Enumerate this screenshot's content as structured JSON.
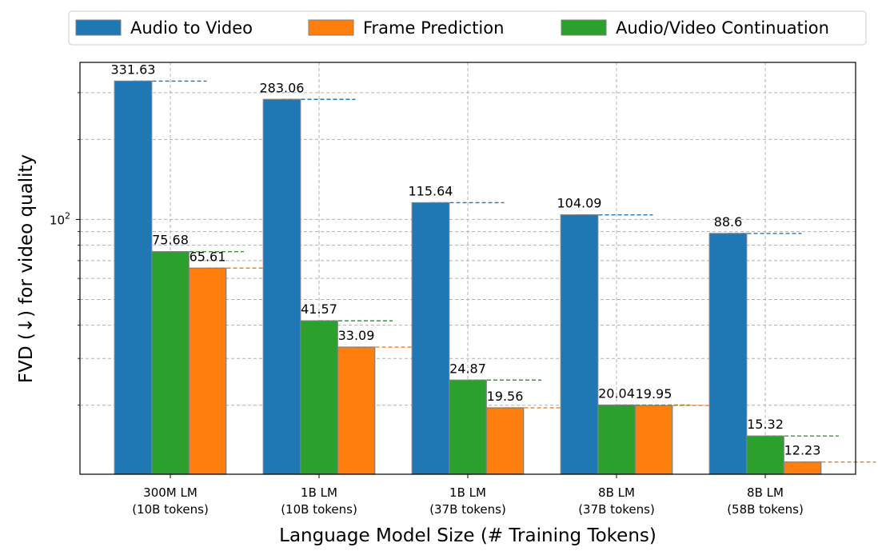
{
  "chart_data": {
    "type": "bar",
    "scale": "log",
    "xlabel": "Language Model Size (# Training Tokens)",
    "ylabel": "FVD (↓) for video quality",
    "ylim": [
      11,
      390
    ],
    "grid": true,
    "legend_position": "top",
    "y_tick_label": "10",
    "y_tick_exponent": "2",
    "categories": [
      [
        "300M LM",
        "(10B tokens)"
      ],
      [
        "1B LM",
        "(10B tokens)"
      ],
      [
        "1B LM",
        "(37B tokens)"
      ],
      [
        "8B LM",
        "(37B tokens)"
      ],
      [
        "8B LM",
        "(58B tokens)"
      ]
    ],
    "series": [
      {
        "name": "Audio to Video",
        "color": "#1f77b4",
        "values": [
          331.63,
          283.06,
          115.64,
          104.09,
          88.6
        ]
      },
      {
        "name": "Audio/Video Continuation",
        "color": "#2ca02c",
        "values": [
          75.68,
          41.57,
          24.87,
          20.04,
          15.32
        ]
      },
      {
        "name": "Frame Prediction",
        "color": "#ff7f0e",
        "values": [
          65.61,
          33.09,
          19.56,
          19.95,
          12.23
        ]
      }
    ],
    "legend_order": [
      "Audio to Video",
      "Frame Prediction",
      "Audio/Video Continuation"
    ]
  }
}
